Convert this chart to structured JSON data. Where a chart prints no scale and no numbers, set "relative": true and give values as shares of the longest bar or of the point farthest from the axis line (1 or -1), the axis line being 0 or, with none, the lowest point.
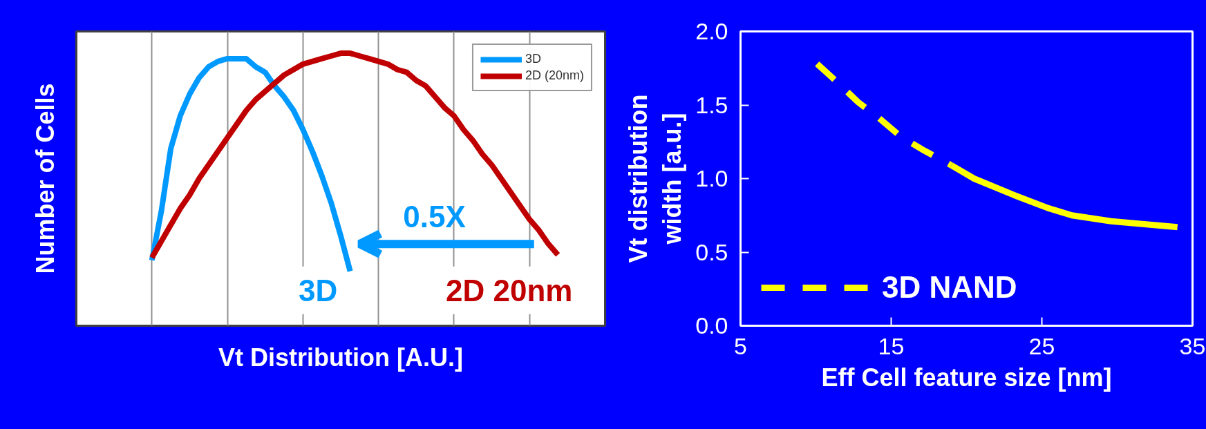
{
  "chart_data": [
    {
      "type": "line",
      "relative": true,
      "xlabel": "Vt Distribution [A.U.]",
      "ylabel": "Number of Cells",
      "categories": [
        null,
        null,
        null,
        null,
        null,
        null,
        null,
        null,
        null,
        null,
        null,
        null,
        null,
        null,
        null,
        null,
        null,
        null,
        null,
        null,
        null,
        null,
        null,
        null,
        null,
        null,
        null,
        null,
        null,
        null,
        null,
        null,
        null,
        null,
        null,
        null,
        null,
        null,
        null,
        null,
        null,
        null,
        null,
        null
      ],
      "grid": "x",
      "legend": "top right",
      "line_style": "solid",
      "series": [
        {
          "name": "3D",
          "color": "#0099ff",
          "values": [
            0.24,
            0.42,
            0.65,
            0.77,
            0.85,
            0.91,
            0.95,
            0.97,
            0.98,
            0.98,
            0.98,
            0.95,
            0.93,
            0.88,
            0.84,
            0.79,
            0.72,
            0.64,
            0.55,
            0.45,
            0.33,
            0.2,
            null,
            null,
            null,
            null,
            null,
            null,
            null,
            null,
            null,
            null,
            null,
            null,
            null,
            null,
            null,
            null,
            null,
            null,
            null,
            null,
            null,
            null
          ]
        },
        {
          "name": "2D (20nm)",
          "color": "#c00000",
          "values": [
            0.25,
            0.31,
            0.37,
            0.43,
            0.48,
            0.54,
            0.59,
            0.64,
            0.69,
            0.74,
            0.79,
            0.83,
            0.86,
            0.89,
            0.92,
            0.94,
            0.96,
            0.97,
            0.98,
            0.99,
            1.0,
            1.0,
            0.99,
            0.98,
            0.97,
            0.96,
            0.94,
            0.93,
            0.9,
            0.88,
            0.84,
            0.8,
            0.77,
            0.72,
            0.68,
            0.63,
            0.59,
            0.54,
            0.49,
            0.44,
            0.39,
            0.35,
            0.3,
            0.26
          ]
        }
      ],
      "annotations": [
        "0.5X",
        "3D",
        "2D 20nm"
      ]
    },
    {
      "type": "line",
      "xlabel": "Eff Cell feature size [nm]",
      "ylabel": "Vt distribution width [a.u.]",
      "xlim": [
        5,
        35
      ],
      "xticks": [
        5,
        15,
        25,
        35
      ],
      "ylim": [
        0,
        2
      ],
      "yticks": [
        {
          "value": 0,
          "label": "0.0"
        },
        0.5,
        {
          "value": 1,
          "label": "1.0"
        },
        1.5,
        {
          "value": 2,
          "label": "2.0"
        }
      ],
      "legend": "bottom left",
      "series": [
        {
          "name": "3D NAND",
          "color": "#ffff00",
          "line_style": "dashed",
          "x": [
            10.08,
            11.37,
            12.8,
            14.2,
            15.7,
            17.2,
            19.0
          ],
          "values": [
            1.78,
            1.66,
            1.52,
            1.41,
            1.28,
            1.19,
            1.09
          ]
        },
        {
          "color": "#ffff00",
          "line_style": "solid",
          "x": [
            19.0,
            20.5,
            23.1,
            25.4,
            27.0,
            29.6,
            34.0
          ],
          "values": [
            1.09,
            1.0,
            0.89,
            0.8,
            0.75,
            0.71,
            0.67
          ]
        }
      ]
    }
  ]
}
